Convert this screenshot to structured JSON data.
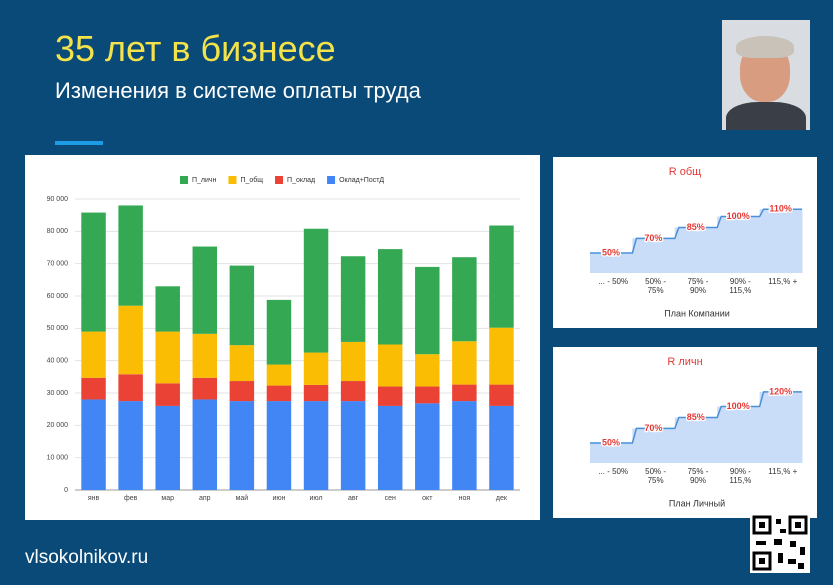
{
  "title": "35 лет в бизнесе",
  "subtitle": "Изменения в системе оплаты труда",
  "footer": "vlsokolnikov.ru",
  "chart_data": [
    {
      "type": "stacked_bar",
      "categories": [
        "янв",
        "фев",
        "мар",
        "апр",
        "май",
        "июн",
        "июл",
        "авг",
        "сен",
        "окт",
        "ноя",
        "дек"
      ],
      "series": [
        {
          "name": "П_личн",
          "color": "#34a853",
          "values": [
            36800,
            31000,
            14000,
            27000,
            24600,
            20000,
            38300,
            26500,
            29500,
            27000,
            26000,
            31600
          ]
        },
        {
          "name": "П_общ",
          "color": "#fbbc04",
          "values": [
            14300,
            21200,
            16000,
            13600,
            11100,
            6500,
            10000,
            12100,
            13000,
            10000,
            13400,
            17600
          ]
        },
        {
          "name": "П_оклад",
          "color": "#ea4335",
          "values": [
            6700,
            8300,
            7000,
            6700,
            6200,
            4800,
            5000,
            6200,
            6000,
            5200,
            5100,
            6600
          ]
        },
        {
          "name": "Оклад+ПостД",
          "color": "#4285f4",
          "values": [
            28000,
            27500,
            26000,
            28000,
            27500,
            27500,
            27500,
            27500,
            26000,
            26800,
            27500,
            26000
          ]
        }
      ],
      "ylim": [
        0,
        90000
      ],
      "yticks": [
        {
          "value": 0,
          "label": "0"
        },
        {
          "value": 10000,
          "label": "10 000"
        },
        {
          "value": 20000,
          "label": "20 000"
        },
        {
          "value": 30000,
          "label": "30 000"
        },
        {
          "value": 40000,
          "label": "40 000"
        },
        {
          "value": 50000,
          "label": "50 000"
        },
        {
          "value": 60000,
          "label": "60 000"
        },
        {
          "value": 70000,
          "label": "70 000"
        },
        {
          "value": 80000,
          "label": "80 000"
        },
        {
          "value": 90000,
          "label": "90 000"
        }
      ],
      "grid": true
    },
    {
      "type": "step_area",
      "title": "R общ",
      "x_label": "План Компании",
      "color": "#4a90d9",
      "fill": "#c9dcf8",
      "categories": [
        "... - 50%",
        "50% - 75%",
        "75% - 90%",
        "90% - 115,%",
        "115,% +"
      ],
      "values": [
        50,
        70,
        85,
        100,
        110
      ],
      "value_labels": [
        "50%",
        "70%",
        "85%",
        "100%",
        "110%"
      ]
    },
    {
      "type": "step_area",
      "title": "R личн",
      "x_label": "План Личный",
      "color": "#4a90d9",
      "fill": "#c9dcf8",
      "categories": [
        "... - 50%",
        "50% - 75%",
        "75% - 90%",
        "90% - 115,%",
        "115,% +"
      ],
      "values": [
        50,
        70,
        85,
        100,
        120
      ],
      "value_labels": [
        "50%",
        "70%",
        "85%",
        "100%",
        "120%"
      ]
    }
  ]
}
